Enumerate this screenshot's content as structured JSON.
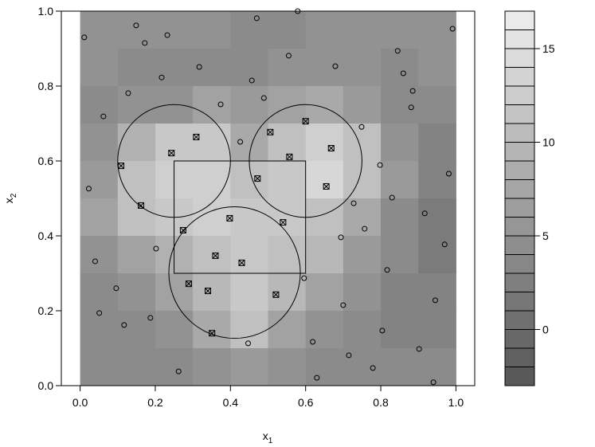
{
  "chart_data": {
    "type": "contour",
    "xlim": [
      -0.05,
      1.05
    ],
    "ylim": [
      0,
      1
    ],
    "xticks": [
      {
        "value": 0,
        "label": "0.0"
      },
      0.2,
      0.4,
      0.6,
      0.8,
      {
        "value": 1,
        "label": "1.0"
      }
    ],
    "yticks": [
      {
        "value": 0,
        "label": "0.0"
      },
      0.2,
      0.4,
      0.6,
      0.8,
      {
        "value": 1,
        "label": "1.0"
      }
    ],
    "x_label": {
      "text": "x",
      "sub": "1"
    },
    "y_label": {
      "text": "x",
      "sub": "2"
    },
    "field": {
      "x": [
        0.05,
        0.15,
        0.25,
        0.35,
        0.45,
        0.55,
        0.65,
        0.75,
        0.85,
        0.95
      ],
      "y": [
        0.95,
        0.85,
        0.75,
        0.65,
        0.55,
        0.45,
        0.35,
        0.25,
        0.15,
        0.05
      ],
      "z": [
        [
          5,
          5,
          5,
          5,
          4,
          4,
          5,
          5,
          5,
          5
        ],
        [
          5,
          4,
          4,
          4,
          4,
          5,
          5,
          5,
          4,
          5
        ],
        [
          4,
          5,
          5,
          7,
          6,
          7,
          8,
          6,
          4,
          4
        ],
        [
          5,
          9,
          12,
          12,
          8,
          11,
          13,
          11,
          5,
          3
        ],
        [
          6,
          11,
          13,
          13,
          11,
          12,
          14,
          11,
          6,
          3
        ],
        [
          7,
          11,
          12,
          13,
          12,
          12,
          11,
          8,
          4,
          2
        ],
        [
          5,
          7,
          9,
          11,
          12,
          11,
          10,
          6,
          4,
          2
        ],
        [
          4,
          5,
          7,
          10,
          12,
          10,
          7,
          5,
          3,
          3
        ],
        [
          4,
          4,
          5,
          8,
          11,
          7,
          5,
          4,
          3,
          3
        ],
        [
          4,
          4,
          4,
          5,
          6,
          5,
          4,
          4,
          4,
          4
        ]
      ]
    },
    "levels": [
      -3,
      -2,
      -1,
      0,
      1,
      2,
      3,
      4,
      5,
      6,
      7,
      8,
      9,
      10,
      11,
      12,
      13,
      14,
      15,
      16,
      17
    ],
    "colorbar_ticks": [
      0,
      5,
      10,
      15
    ],
    "points": {
      "x": [
        0.011,
        0.149,
        0.172,
        0.232,
        0.47,
        0.579,
        0.991,
        0.845,
        0.86,
        0.885,
        0.881,
        0.679,
        0.555,
        0.457,
        0.489,
        0.317,
        0.217,
        0.128,
        0.062,
        0.374,
        0.426,
        0.749,
        0.798,
        0.83,
        0.728,
        0.757,
        0.694,
        0.817,
        0.917,
        0.97,
        0.981,
        0.596,
        0.7,
        0.945,
        0.715,
        0.619,
        0.63,
        0.779,
        0.804,
        0.902,
        0.94,
        0.447,
        0.262,
        0.187,
        0.117,
        0.051,
        0.096,
        0.04,
        0.202,
        0.023
      ],
      "y": [
        0.93,
        0.962,
        0.915,
        0.936,
        0.981,
        1.0,
        0.953,
        0.894,
        0.834,
        0.787,
        0.743,
        0.853,
        0.881,
        0.815,
        0.768,
        0.851,
        0.823,
        0.781,
        0.719,
        0.751,
        0.651,
        0.691,
        0.589,
        0.502,
        0.487,
        0.419,
        0.396,
        0.309,
        0.46,
        0.377,
        0.566,
        0.287,
        0.215,
        0.228,
        0.081,
        0.117,
        0.021,
        0.047,
        0.147,
        0.098,
        0.009,
        0.113,
        0.038,
        0.181,
        0.162,
        0.194,
        0.26,
        0.332,
        0.366,
        0.526
      ]
    },
    "design_points": {
      "x": [
        0.309,
        0.243,
        0.109,
        0.162,
        0.6,
        0.506,
        0.668,
        0.557,
        0.472,
        0.655,
        0.398,
        0.274,
        0.54,
        0.36,
        0.43,
        0.289,
        0.34,
        0.521,
        0.351
      ],
      "y": [
        0.664,
        0.621,
        0.587,
        0.481,
        0.706,
        0.677,
        0.634,
        0.611,
        0.553,
        0.532,
        0.447,
        0.415,
        0.436,
        0.347,
        0.328,
        0.272,
        0.253,
        0.243,
        0.14
      ]
    },
    "circles": [
      {
        "cx": 0.25,
        "cy": 0.6,
        "r": 0.15
      },
      {
        "cx": 0.6,
        "cy": 0.6,
        "r": 0.15
      },
      {
        "cx": 0.411,
        "cy": 0.302,
        "r": 0.175
      }
    ],
    "rectangle": {
      "x": [
        0.25,
        0.6
      ],
      "y": [
        0.3,
        0.6
      ]
    }
  }
}
